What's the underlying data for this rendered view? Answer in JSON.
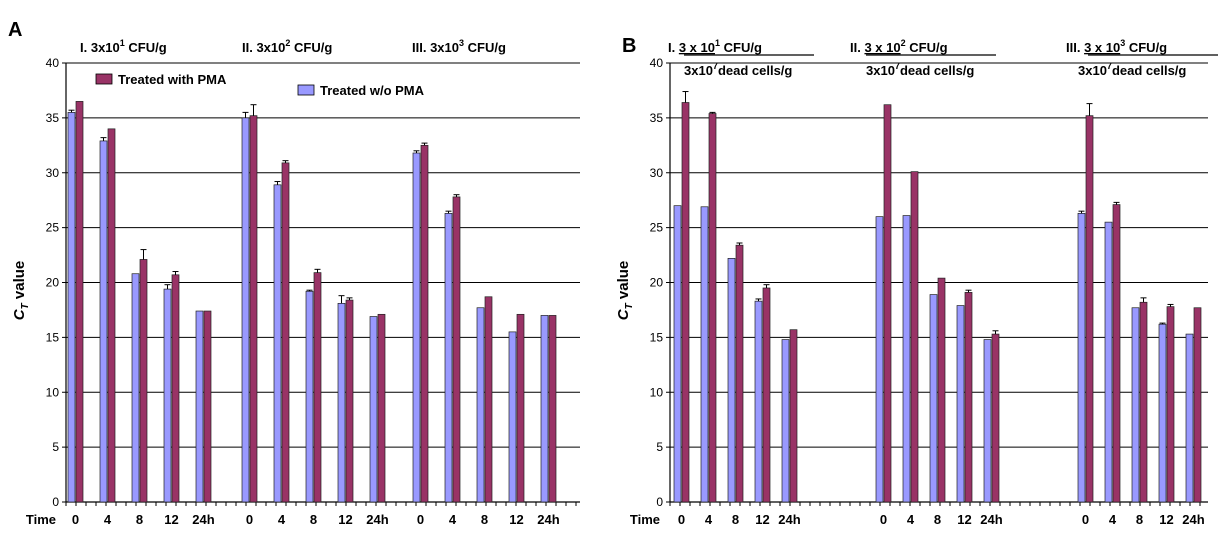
{
  "chart_data": [
    {
      "type": "bar",
      "panel_label": "A",
      "ylabel": "CT value",
      "ylabel_main": "C",
      "ylabel_sub": "T",
      "ylabel_rest": " value",
      "ylim": [
        0,
        40
      ],
      "yticks": [
        "0",
        "5",
        "10",
        "15",
        "20",
        "25",
        "30",
        "35",
        "40"
      ],
      "x_title": "Time",
      "grid": true,
      "legend_placement": "top-left",
      "groups": [
        {
          "roman": "I.",
          "base": "3x10",
          "exp": "1",
          "unit": " CFU/g",
          "line2": ""
        },
        {
          "roman": "II.",
          "base": "3x10",
          "exp": "2",
          "unit": " CFU/g",
          "line2": ""
        },
        {
          "roman": "III.",
          "base": "3x10",
          "exp": "3",
          "unit": " CFU/g",
          "line2": ""
        }
      ],
      "categories": [
        "0",
        "4",
        "8",
        "12",
        "24h"
      ],
      "series": [
        {
          "name": "Treated w/o PMA",
          "color": "#9999ff",
          "values": [
            [
              35.5,
              32.9,
              20.8,
              19.4,
              17.4
            ],
            [
              35.0,
              28.9,
              19.2,
              18.1,
              16.9
            ],
            [
              31.8,
              26.3,
              17.7,
              15.5,
              17.0
            ]
          ],
          "errors": [
            [
              0.2,
              0.3,
              0,
              0.4,
              0
            ],
            [
              0.5,
              0.3,
              0.1,
              0.7,
              0
            ],
            [
              0.2,
              0.2,
              0,
              0,
              0
            ]
          ]
        },
        {
          "name": "Treated with PMA",
          "color": "#993366",
          "values": [
            [
              36.5,
              34.0,
              22.1,
              20.7,
              17.4
            ],
            [
              35.2,
              30.9,
              20.9,
              18.4,
              17.1
            ],
            [
              32.5,
              27.8,
              18.7,
              17.1,
              17.0
            ]
          ],
          "errors": [
            [
              0,
              0,
              0.9,
              0.3,
              0
            ],
            [
              1.0,
              0.2,
              0.3,
              0.2,
              0
            ],
            [
              0.2,
              0.2,
              0,
              0,
              0
            ]
          ]
        }
      ]
    },
    {
      "type": "bar",
      "panel_label": "B",
      "ylabel": "CT value",
      "ylabel_main": "C",
      "ylabel_sub": "T",
      "ylabel_rest": " value",
      "ylim": [
        0,
        40
      ],
      "yticks": [
        "0",
        "5",
        "10",
        "15",
        "20",
        "25",
        "30",
        "35",
        "40"
      ],
      "x_title": "Time",
      "grid": true,
      "legend_placement": "none",
      "groups": [
        {
          "roman": "I.",
          "base": "3 x 10",
          "exp": "1",
          "unit": " CFU/g",
          "line2_base": "3x10",
          "line2_exp": "7",
          "line2_unit": "dead cells/g"
        },
        {
          "roman": "II.",
          "base": "3 x 10",
          "exp": "2",
          "unit": " CFU/g",
          "line2_base": "3x10",
          "line2_exp": "7",
          "line2_unit": "dead cells/g"
        },
        {
          "roman": "III.",
          "base": "3 x 10",
          "exp": "3",
          "unit": " CFU/g",
          "line2_base": "3x10",
          "line2_exp": "7",
          "line2_unit": "dead cells/g"
        }
      ],
      "categories": [
        "0",
        "4",
        "8",
        "12",
        "24h"
      ],
      "series": [
        {
          "name": "Treated w/o PMA",
          "color": "#9999ff",
          "values": [
            [
              27.0,
              26.9,
              22.2,
              18.3,
              14.8
            ],
            [
              26.0,
              26.1,
              18.9,
              17.9,
              14.8
            ],
            [
              26.3,
              25.5,
              17.7,
              16.2,
              15.3
            ]
          ],
          "errors": [
            [
              0,
              0,
              0,
              0.2,
              0
            ],
            [
              0,
              0,
              0,
              0,
              0
            ],
            [
              0.2,
              0,
              0,
              0.1,
              0
            ]
          ]
        },
        {
          "name": "Treated with PMA",
          "color": "#993366",
          "values": [
            [
              36.4,
              35.4,
              23.4,
              19.5,
              15.7
            ],
            [
              36.2,
              30.1,
              20.4,
              19.1,
              15.3
            ],
            [
              35.2,
              27.1,
              18.2,
              17.8,
              17.7
            ]
          ],
          "errors": [
            [
              1.0,
              0.1,
              0.2,
              0.3,
              0
            ],
            [
              0,
              0,
              0,
              0.2,
              0.3
            ],
            [
              1.1,
              0.2,
              0.4,
              0.2,
              0
            ]
          ]
        }
      ]
    }
  ]
}
